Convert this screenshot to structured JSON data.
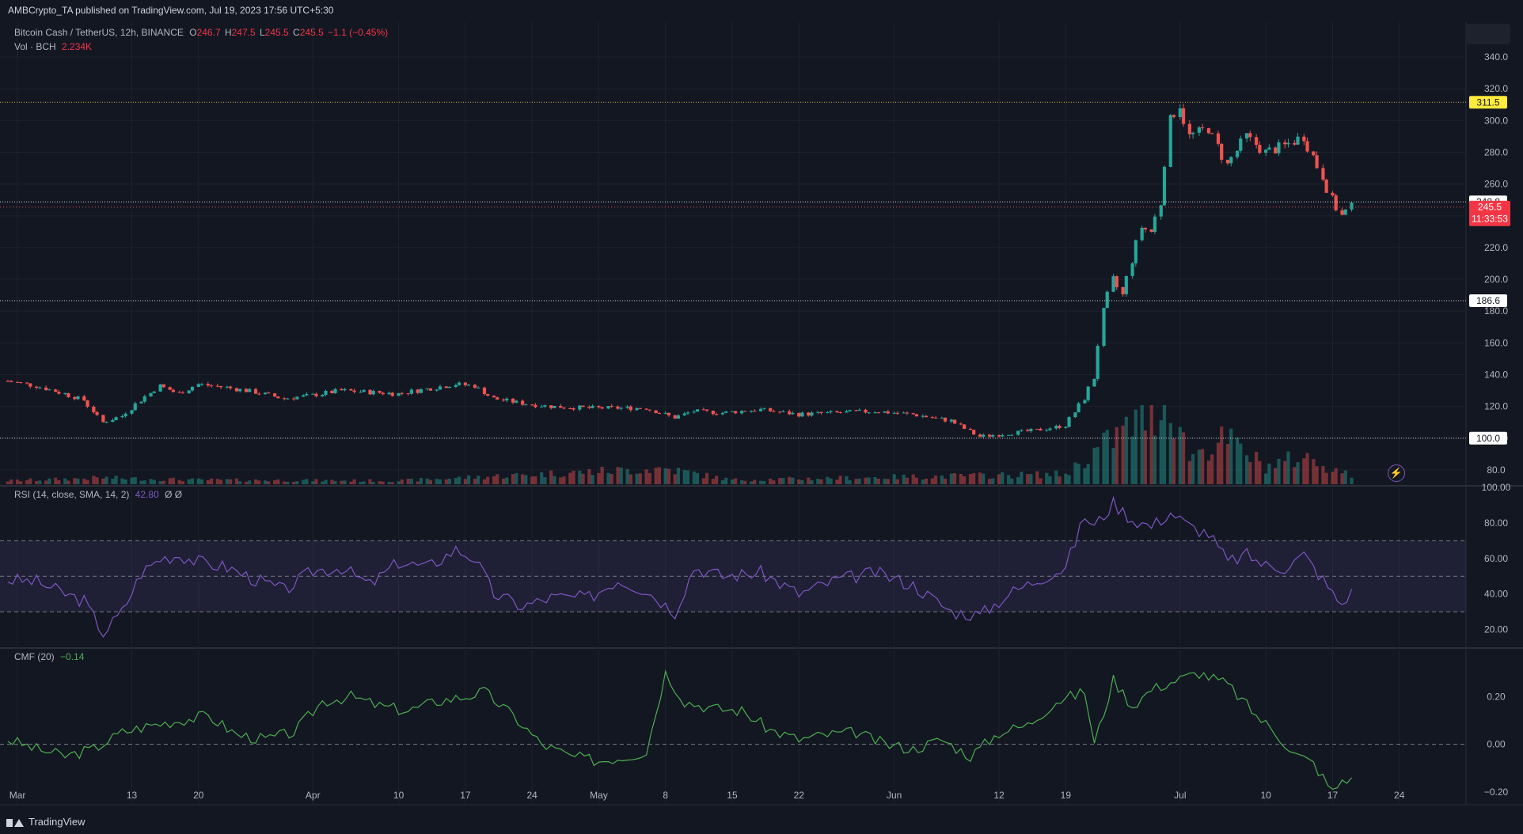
{
  "header": {
    "published": "AMBCrypto_TA published on TradingView.com, Jul 19, 2023 17:56 UTC+5:30"
  },
  "legend": {
    "symbol": "Bitcoin Cash / TetherUS, 12h, BINANCE",
    "o_label": "O",
    "o_val": "246.7",
    "h_label": "H",
    "h_val": "247.5",
    "l_label": "L",
    "l_val": "245.5",
    "c_label": "C",
    "c_val": "245.5",
    "change": "−1.1 (−0.45%)",
    "vol_label": "Vol · BCH",
    "vol_val": "2.234K",
    "rsi_label": "RSI (14, close, SMA, 14, 2)",
    "rsi_val": "42.80",
    "rsi_extra": "Ø Ø",
    "cmf_label": "CMF (20)",
    "cmf_val": "−0.14"
  },
  "footer": {
    "brand": "TradingView"
  },
  "colors": {
    "bg": "#131722",
    "up": "#26a69a",
    "down": "#ef5350",
    "rsi": "#7e57c2",
    "cmf": "#4caf50",
    "grid": "#1e222d",
    "text": "#b2b5be",
    "highlight": "#ffeb3b"
  },
  "icons": [
    "lightning-icon",
    "tradingview-logo-icon"
  ],
  "chart_data": [
    {
      "type": "candlestick",
      "name": "",
      "x_labels": [
        {
          "label": "Mar",
          "date": "2023-03-01"
        },
        {
          "label": "13",
          "date": "2023-03-13"
        },
        {
          "label": "20",
          "date": "2023-03-20"
        },
        {
          "label": "Apr",
          "date": "2023-04-01"
        },
        {
          "label": "10",
          "date": "2023-04-10"
        },
        {
          "label": "17",
          "date": "2023-04-17"
        },
        {
          "label": "24",
          "date": "2023-04-24"
        },
        {
          "label": "May",
          "date": "2023-05-01"
        },
        {
          "label": "8",
          "date": "2023-05-08"
        },
        {
          "label": "15",
          "date": "2023-05-15"
        },
        {
          "label": "22",
          "date": "2023-05-22"
        },
        {
          "label": "Jun",
          "date": "2023-06-01"
        },
        {
          "label": "12",
          "date": "2023-06-12"
        },
        {
          "label": "19",
          "date": "2023-06-19"
        },
        {
          "label": "Jul",
          "date": "2023-07-01"
        },
        {
          "label": "10",
          "date": "2023-07-10"
        },
        {
          "label": "17",
          "date": "2023-07-17"
        },
        {
          "label": "24",
          "date": "2023-07-24"
        }
      ],
      "x_range": [
        "2023-02-28",
        "2023-07-31"
      ],
      "y_range": [
        71,
        346
      ],
      "y_ticks": [
        "340.0",
        "320.0",
        "300.0",
        "280.0",
        "260.0",
        "240.0",
        "220.0",
        "200.0",
        "180.0",
        "160.0",
        "140.0",
        "120.0",
        "100.0",
        "80.0"
      ],
      "price_path": [
        [
          "2023-02-28",
          136
        ],
        [
          "2023-03-03",
          133
        ],
        [
          "2023-03-06",
          128
        ],
        [
          "2023-03-08",
          124
        ],
        [
          "2023-03-10",
          110
        ],
        [
          "2023-03-12",
          114
        ],
        [
          "2023-03-14",
          124
        ],
        [
          "2023-03-16",
          133
        ],
        [
          "2023-03-18",
          128
        ],
        [
          "2023-03-20",
          134
        ],
        [
          "2023-03-23",
          132
        ],
        [
          "2023-03-26",
          129
        ],
        [
          "2023-03-29",
          125
        ],
        [
          "2023-04-01",
          127
        ],
        [
          "2023-04-04",
          130
        ],
        [
          "2023-04-07",
          129
        ],
        [
          "2023-04-10",
          128
        ],
        [
          "2023-04-13",
          131
        ],
        [
          "2023-04-16",
          134
        ],
        [
          "2023-04-18",
          133
        ],
        [
          "2023-04-20",
          125
        ],
        [
          "2023-04-23",
          122
        ],
        [
          "2023-04-26",
          120
        ],
        [
          "2023-04-30",
          119
        ],
        [
          "2023-05-03",
          119
        ],
        [
          "2023-05-06",
          119
        ],
        [
          "2023-05-09",
          113
        ],
        [
          "2023-05-11",
          117
        ],
        [
          "2023-05-14",
          116
        ],
        [
          "2023-05-18",
          118
        ],
        [
          "2023-05-22",
          115
        ],
        [
          "2023-05-26",
          116
        ],
        [
          "2023-05-30",
          117
        ],
        [
          "2023-06-03",
          115
        ],
        [
          "2023-06-07",
          111
        ],
        [
          "2023-06-10",
          101
        ],
        [
          "2023-06-13",
          103
        ],
        [
          "2023-06-16",
          105
        ],
        [
          "2023-06-19",
          108
        ],
        [
          "2023-06-21",
          125
        ],
        [
          "2023-06-22",
          138
        ],
        [
          "2023-06-23",
          180
        ],
        [
          "2023-06-24",
          200
        ],
        [
          "2023-06-25",
          190
        ],
        [
          "2023-06-26",
          212
        ],
        [
          "2023-06-27",
          233
        ],
        [
          "2023-06-28",
          230
        ],
        [
          "2023-06-29",
          248
        ],
        [
          "2023-06-30",
          300
        ],
        [
          "2023-07-01",
          310
        ],
        [
          "2023-07-02",
          290
        ],
        [
          "2023-07-04",
          295
        ],
        [
          "2023-07-06",
          272
        ],
        [
          "2023-07-08",
          290
        ],
        [
          "2023-07-10",
          280
        ],
        [
          "2023-07-12",
          284
        ],
        [
          "2023-07-14",
          290
        ],
        [
          "2023-07-16",
          265
        ],
        [
          "2023-07-17",
          250
        ],
        [
          "2023-07-18",
          240
        ],
        [
          "2023-07-19",
          245.5
        ]
      ],
      "levels": [
        {
          "label": "311.5",
          "value": 311.5
        },
        {
          "label": "248.8",
          "value": 248.8
        },
        {
          "label": "186.6",
          "value": 186.6
        },
        {
          "label": "100.0",
          "value": 100.0
        }
      ],
      "last_price": {
        "label": "245.5",
        "value": 245.5,
        "countdown": "11:33:53"
      }
    },
    {
      "type": "bar",
      "name": "",
      "volume_profile": [
        [
          "2023-02-28",
          0.12
        ],
        [
          "2023-03-10",
          0.22
        ],
        [
          "2023-03-20",
          0.15
        ],
        [
          "2023-04-10",
          0.12
        ],
        [
          "2023-05-08",
          0.55
        ],
        [
          "2023-05-15",
          0.15
        ],
        [
          "2023-06-10",
          0.3
        ],
        [
          "2023-06-19",
          0.35
        ],
        [
          "2023-06-23",
          1.35
        ],
        [
          "2023-06-30",
          2.9
        ],
        [
          "2023-07-02",
          1.0
        ],
        [
          "2023-07-06",
          1.55
        ],
        [
          "2023-07-10",
          0.6
        ],
        [
          "2023-07-14",
          0.95
        ],
        [
          "2023-07-19",
          0.3
        ]
      ]
    },
    {
      "type": "line",
      "name": "",
      "y_range": [
        10,
        100
      ],
      "y_ticks": [
        "100.00",
        "80.00",
        "60.00",
        "40.00",
        "20.00"
      ],
      "bands": [
        30,
        50,
        70
      ],
      "points": [
        [
          "2023-02-28",
          48
        ],
        [
          "2023-03-03",
          47
        ],
        [
          "2023-03-06",
          40
        ],
        [
          "2023-03-08",
          36
        ],
        [
          "2023-03-10",
          18
        ],
        [
          "2023-03-12",
          30
        ],
        [
          "2023-03-14",
          52
        ],
        [
          "2023-03-16",
          60
        ],
        [
          "2023-03-18",
          62
        ],
        [
          "2023-03-20",
          58
        ],
        [
          "2023-03-23",
          55
        ],
        [
          "2023-03-26",
          48
        ],
        [
          "2023-03-29",
          42
        ],
        [
          "2023-04-01",
          53
        ],
        [
          "2023-04-04",
          55
        ],
        [
          "2023-04-07",
          45
        ],
        [
          "2023-04-10",
          58
        ],
        [
          "2023-04-13",
          55
        ],
        [
          "2023-04-16",
          65
        ],
        [
          "2023-04-18",
          60
        ],
        [
          "2023-04-20",
          40
        ],
        [
          "2023-04-23",
          33
        ],
        [
          "2023-04-26",
          38
        ],
        [
          "2023-04-30",
          38
        ],
        [
          "2023-05-03",
          48
        ],
        [
          "2023-05-06",
          42
        ],
        [
          "2023-05-09",
          30
        ],
        [
          "2023-05-11",
          55
        ],
        [
          "2023-05-14",
          50
        ],
        [
          "2023-05-18",
          52
        ],
        [
          "2023-05-22",
          40
        ],
        [
          "2023-05-26",
          48
        ],
        [
          "2023-05-30",
          52
        ],
        [
          "2023-06-03",
          45
        ],
        [
          "2023-06-07",
          30
        ],
        [
          "2023-06-10",
          28
        ],
        [
          "2023-06-13",
          40
        ],
        [
          "2023-06-16",
          48
        ],
        [
          "2023-06-19",
          55
        ],
        [
          "2023-06-21",
          84
        ],
        [
          "2023-06-22",
          78
        ],
        [
          "2023-06-24",
          91
        ],
        [
          "2023-06-26",
          82
        ],
        [
          "2023-06-28",
          78
        ],
        [
          "2023-06-30",
          86
        ],
        [
          "2023-07-02",
          78
        ],
        [
          "2023-07-04",
          74
        ],
        [
          "2023-07-06",
          58
        ],
        [
          "2023-07-08",
          62
        ],
        [
          "2023-07-10",
          56
        ],
        [
          "2023-07-12",
          55
        ],
        [
          "2023-07-14",
          62
        ],
        [
          "2023-07-16",
          48
        ],
        [
          "2023-07-17",
          40
        ],
        [
          "2023-07-18",
          34
        ],
        [
          "2023-07-19",
          42.8
        ]
      ]
    },
    {
      "type": "line",
      "name": "",
      "y_range": [
        -0.25,
        0.4
      ],
      "y_ticks": [
        "0.20",
        "0.00",
        "−0.20"
      ],
      "zero_line": 0.0,
      "points": [
        [
          "2023-02-28",
          0.02
        ],
        [
          "2023-03-03",
          -0.02
        ],
        [
          "2023-03-06",
          -0.05
        ],
        [
          "2023-03-09",
          -0.02
        ],
        [
          "2023-03-12",
          0.05
        ],
        [
          "2023-03-15",
          0.08
        ],
        [
          "2023-03-18",
          0.1
        ],
        [
          "2023-03-21",
          0.12
        ],
        [
          "2023-03-24",
          0.04
        ],
        [
          "2023-03-27",
          0.02
        ],
        [
          "2023-03-30",
          0.05
        ],
        [
          "2023-04-02",
          0.18
        ],
        [
          "2023-04-05",
          0.2
        ],
        [
          "2023-04-08",
          0.16
        ],
        [
          "2023-04-11",
          0.14
        ],
        [
          "2023-04-14",
          0.18
        ],
        [
          "2023-04-17",
          0.2
        ],
        [
          "2023-04-19",
          0.22
        ],
        [
          "2023-04-22",
          0.12
        ],
        [
          "2023-04-25",
          0.0
        ],
        [
          "2023-04-28",
          -0.05
        ],
        [
          "2023-05-01",
          -0.07
        ],
        [
          "2023-05-04",
          -0.05
        ],
        [
          "2023-05-06",
          -0.03
        ],
        [
          "2023-05-08",
          0.3
        ],
        [
          "2023-05-10",
          0.18
        ],
        [
          "2023-05-13",
          0.15
        ],
        [
          "2023-05-16",
          0.14
        ],
        [
          "2023-05-19",
          0.06
        ],
        [
          "2023-05-22",
          0.02
        ],
        [
          "2023-05-25",
          0.04
        ],
        [
          "2023-05-28",
          0.05
        ],
        [
          "2023-05-31",
          0.0
        ],
        [
          "2023-06-03",
          -0.02
        ],
        [
          "2023-06-06",
          0.02
        ],
        [
          "2023-06-09",
          -0.05
        ],
        [
          "2023-06-12",
          0.05
        ],
        [
          "2023-06-15",
          0.08
        ],
        [
          "2023-06-18",
          0.18
        ],
        [
          "2023-06-21",
          0.22
        ],
        [
          "2023-06-22",
          0.0
        ],
        [
          "2023-06-24",
          0.27
        ],
        [
          "2023-06-26",
          0.16
        ],
        [
          "2023-06-28",
          0.23
        ],
        [
          "2023-06-30",
          0.26
        ],
        [
          "2023-07-03",
          0.3
        ],
        [
          "2023-07-06",
          0.25
        ],
        [
          "2023-07-09",
          0.12
        ],
        [
          "2023-07-11",
          0.05
        ],
        [
          "2023-07-13",
          -0.04
        ],
        [
          "2023-07-15",
          -0.08
        ],
        [
          "2023-07-17",
          -0.2
        ],
        [
          "2023-07-18",
          -0.15
        ],
        [
          "2023-07-19",
          -0.14
        ]
      ]
    }
  ]
}
